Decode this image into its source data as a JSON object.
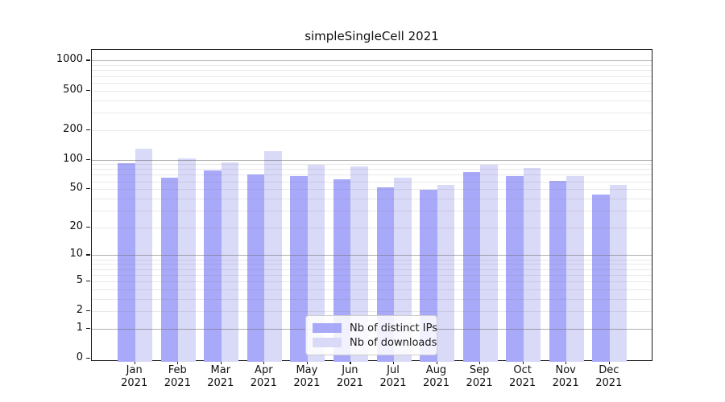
{
  "chart_data": {
    "type": "bar",
    "title": "simpleSingleCell 2021",
    "x": {
      "months": [
        "Jan",
        "Feb",
        "Mar",
        "Apr",
        "May",
        "Jun",
        "Jul",
        "Aug",
        "Sep",
        "Oct",
        "Nov",
        "Dec"
      ],
      "year": "2021"
    },
    "series": [
      {
        "name": "Nb of distinct IPs",
        "color": "#a9a9fa",
        "values": [
          92,
          66,
          77,
          71,
          68,
          63,
          52,
          49,
          75,
          68,
          61,
          44
        ]
      },
      {
        "name": "Nb of downloads",
        "color": "#d9d9f8",
        "values": [
          130,
          103,
          93,
          121,
          89,
          85,
          65,
          55,
          88,
          82,
          68,
          55
        ]
      }
    ],
    "y_axis": {
      "scale": "log1p",
      "tick_labels": [
        "0",
        "1",
        "2",
        "5",
        "10",
        "20",
        "50",
        "100",
        "200",
        "500",
        "1000"
      ],
      "tick_values": [
        0,
        1,
        2,
        5,
        10,
        20,
        50,
        100,
        200,
        500,
        1000
      ],
      "range": [
        0,
        1100
      ]
    },
    "legend": {
      "position": "lower center"
    },
    "grid": "horizontal, log minor + major"
  },
  "colors": {
    "bar_distinct_ips": "#a9a9fa",
    "bar_downloads": "#d9d9f8",
    "grid_major": "#b3b3b3",
    "grid_minor": "#e8e8e8",
    "spine": "#1a1a1a",
    "text": "#111111",
    "legend_border": "#cccccc"
  }
}
